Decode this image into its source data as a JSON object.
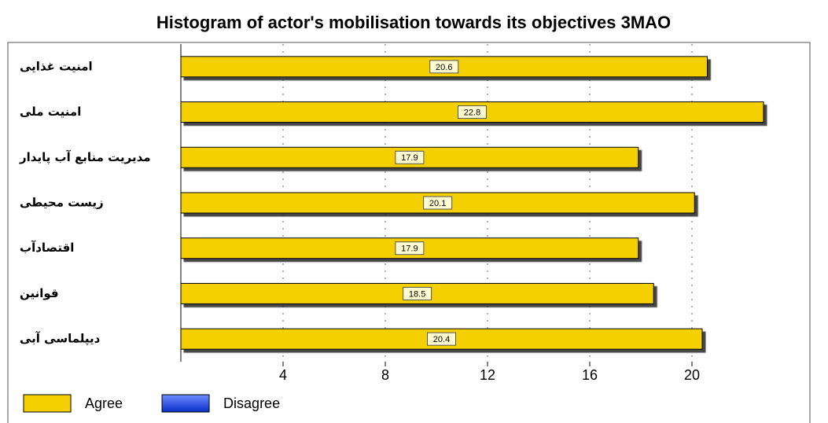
{
  "chart_data": {
    "type": "hbar",
    "title": "Histogram of actor's mobilisation towards its objectives 3MAO",
    "categories": [
      "امنیت غذایی",
      "امنیت ملی",
      "مدیریت منابع آب پایدار",
      "زیست محیطی",
      "اقتصادآب",
      "قوانین",
      "دیپلماسی آبی"
    ],
    "series": [
      {
        "name": "Agree",
        "color": "#f5d000",
        "values": [
          20.6,
          22.8,
          17.9,
          20.1,
          17.9,
          18.5,
          20.4
        ]
      },
      {
        "name": "Disagree",
        "color": "#1f4fe0",
        "values": [
          null,
          null,
          null,
          null,
          null,
          null,
          null
        ]
      }
    ],
    "xlim": [
      0,
      24
    ],
    "xticks": [
      4,
      8,
      12,
      16,
      20
    ],
    "grid": true
  }
}
